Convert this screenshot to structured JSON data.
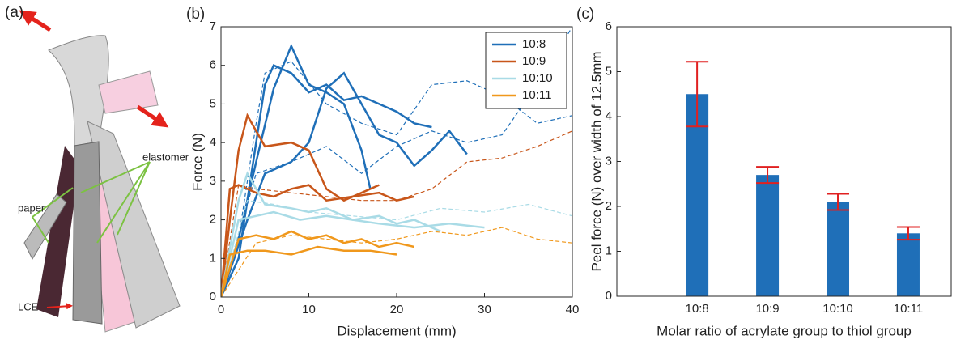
{
  "illustration": {
    "panel_label": "(a)",
    "paper": "paper",
    "elastomer": "elastomer",
    "lce": "LCE"
  },
  "chart_data": [
    {
      "type": "line",
      "panel_label": "(b)",
      "x_label": "Displacement (mm)",
      "y_label": "Force (N)",
      "xlim": [
        0,
        40
      ],
      "xticks": [
        0,
        10,
        20,
        30,
        40
      ],
      "ylim": [
        0,
        7
      ],
      "yticks": [
        0,
        1,
        2,
        3,
        4,
        5,
        6,
        7
      ],
      "legend": "top-right",
      "series": [
        {
          "name": "10:8",
          "color": "#1f6fb8",
          "runs": [
            {
              "style": "solid",
              "x": [
                0,
                2,
                4,
                5,
                6,
                8,
                10,
                12,
                14,
                16,
                18,
                20,
                22,
                24
              ],
              "values": [
                0,
                1,
                4,
                5.5,
                6,
                5.8,
                5.3,
                5.5,
                5.1,
                5.2,
                5,
                4.8,
                4.5,
                4.4
              ]
            },
            {
              "style": "solid",
              "x": [
                0,
                2,
                4,
                6,
                8,
                10,
                12,
                14,
                16,
                17
              ],
              "values": [
                0,
                1.5,
                3.5,
                5.4,
                6.5,
                5.5,
                5.3,
                5,
                3.8,
                2.8
              ]
            },
            {
              "style": "solid",
              "x": [
                0,
                3,
                5,
                8,
                10,
                12,
                14,
                16,
                18,
                20,
                22,
                24,
                26,
                28
              ],
              "values": [
                0,
                2,
                3.2,
                3.5,
                4,
                5.4,
                5.8,
                5,
                4.2,
                4,
                3.4,
                3.8,
                4.3,
                3.7
              ]
            },
            {
              "style": "dashed",
              "x": [
                0,
                2,
                4,
                5,
                8,
                12,
                16,
                20,
                24,
                28,
                32,
                36,
                40
              ],
              "values": [
                0,
                1.5,
                4.5,
                5.8,
                6.1,
                5,
                4.5,
                4.2,
                5.5,
                5.6,
                5.2,
                4.5,
                4.7
              ]
            },
            {
              "style": "dashed",
              "x": [
                0,
                4,
                8,
                12,
                16,
                20,
                24,
                28,
                32,
                36,
                40
              ],
              "values": [
                0,
                3.2,
                3.5,
                3.9,
                3.2,
                3.9,
                4.3,
                4,
                4.2,
                5.5,
                7
              ]
            }
          ]
        },
        {
          "name": "10:9",
          "color": "#c8561a",
          "runs": [
            {
              "style": "solid",
              "x": [
                0,
                1,
                2,
                3,
                4,
                5,
                8,
                10,
                12,
                14,
                16,
                18
              ],
              "values": [
                0,
                2,
                3.8,
                4.7,
                4.3,
                3.9,
                4,
                3.8,
                2.8,
                2.5,
                2.7,
                2.9
              ]
            },
            {
              "style": "solid",
              "x": [
                0,
                1,
                2,
                4,
                6,
                8,
                10,
                12,
                15,
                18,
                20,
                22
              ],
              "values": [
                0,
                2.8,
                2.9,
                2.7,
                2.6,
                2.8,
                2.9,
                2.5,
                2.6,
                2.7,
                2.5,
                2.6
              ]
            },
            {
              "style": "dashed",
              "x": [
                0,
                2,
                4,
                8,
                12,
                16,
                20,
                24,
                28,
                32,
                36,
                40
              ],
              "values": [
                0,
                2.9,
                2.8,
                2.7,
                2.6,
                2.5,
                2.5,
                2.8,
                3.5,
                3.6,
                3.9,
                4.3
              ]
            }
          ]
        },
        {
          "name": "10:10",
          "color": "#a9dbe6",
          "runs": [
            {
              "style": "solid",
              "x": [
                0,
                2,
                3,
                5,
                8,
                10,
                12,
                15,
                18,
                20,
                22,
                25
              ],
              "values": [
                0,
                2.5,
                3.2,
                2.4,
                2.3,
                2.2,
                2.3,
                2,
                2.1,
                1.9,
                2,
                1.7
              ]
            },
            {
              "style": "solid",
              "x": [
                0,
                2,
                4,
                6,
                9,
                12,
                15,
                18,
                22,
                26,
                30
              ],
              "values": [
                0,
                2,
                2.1,
                2.2,
                2,
                2.1,
                2,
                1.9,
                1.8,
                1.9,
                1.8
              ]
            },
            {
              "style": "dashed",
              "x": [
                0,
                3,
                6,
                10,
                15,
                20,
                25,
                30,
                35,
                40
              ],
              "values": [
                0,
                2.5,
                2.4,
                2.2,
                2.1,
                2,
                2.3,
                2.2,
                2.4,
                2.1
              ]
            }
          ]
        },
        {
          "name": "10:11",
          "color": "#f0981c",
          "runs": [
            {
              "style": "solid",
              "x": [
                0,
                2,
                4,
                6,
                8,
                10,
                12,
                14,
                16,
                18,
                20,
                22
              ],
              "values": [
                0,
                1.5,
                1.6,
                1.5,
                1.7,
                1.5,
                1.6,
                1.4,
                1.5,
                1.3,
                1.4,
                1.3
              ]
            },
            {
              "style": "solid",
              "x": [
                0,
                1,
                3,
                5,
                8,
                11,
                14,
                17,
                20
              ],
              "values": [
                0,
                1.1,
                1.2,
                1.2,
                1.1,
                1.3,
                1.2,
                1.2,
                1.1
              ]
            },
            {
              "style": "dashed",
              "x": [
                0,
                4,
                8,
                12,
                16,
                20,
                24,
                28,
                32,
                36,
                40
              ],
              "values": [
                0,
                1.4,
                1.6,
                1.5,
                1.4,
                1.5,
                1.7,
                1.6,
                1.8,
                1.5,
                1.4
              ]
            }
          ]
        }
      ]
    },
    {
      "type": "bar",
      "panel_label": "(c)",
      "x_label": "Molar ratio of acrylate group to thiol group",
      "y_label": "Peel force (N) over width of 12.5mm",
      "categories": [
        "10:8",
        "10:9",
        "10:10",
        "10:11"
      ],
      "values": [
        4.5,
        2.7,
        2.1,
        1.4
      ],
      "errors": [
        0.72,
        0.18,
        0.18,
        0.14
      ],
      "color": "#1f6fb8",
      "error_color": "#e02020",
      "ylim": [
        0,
        6
      ],
      "yticks": [
        0,
        1,
        2,
        3,
        4,
        5,
        6
      ]
    }
  ]
}
